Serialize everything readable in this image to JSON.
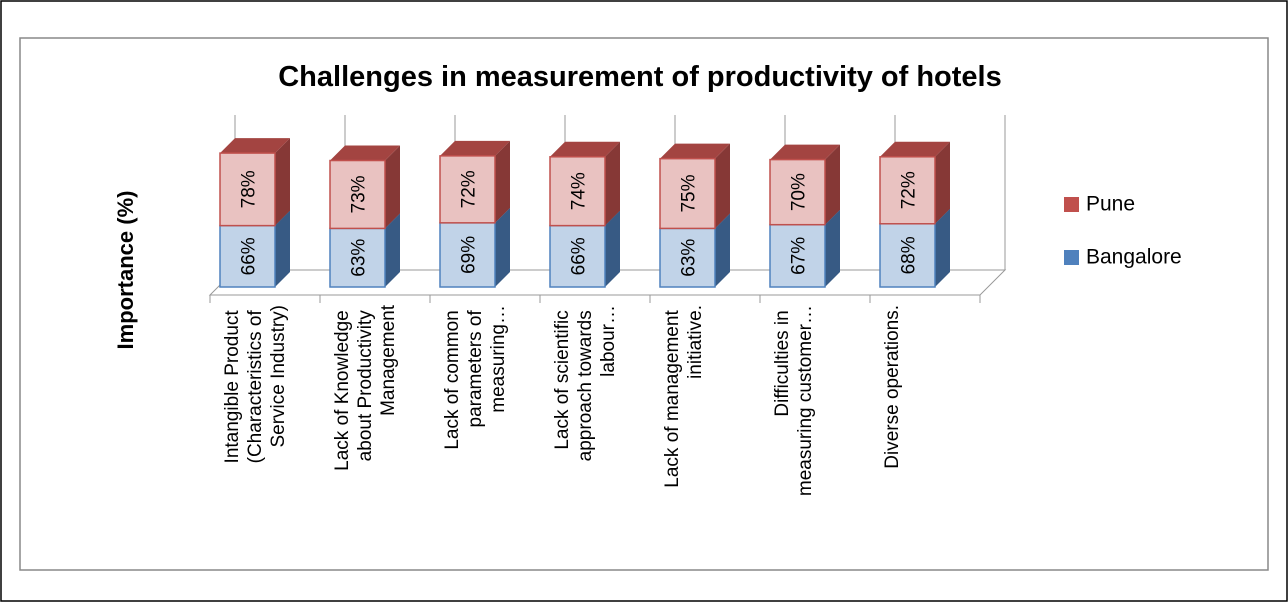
{
  "chart_data": {
    "type": "bar3d_stacked",
    "title": "Challenges in measurement of productivity of hotels",
    "y_label": "Importance  (%)",
    "categories": [
      "Intangible Product (Characteristics of Service Industry)",
      "Lack of Knowledge about Productivity Management",
      "Lack of common parameters of measuring…",
      "Lack of scientific approach towards labour…",
      "Lack of management initiative.",
      "Difficulties in measuring customer…",
      "Diverse operations."
    ],
    "series": [
      {
        "name": "Bangalore",
        "color": "#4f81bd",
        "values": [
          66,
          63,
          69,
          66,
          63,
          67,
          68
        ],
        "value_labels": [
          "66%",
          "63%",
          "69%",
          "66%",
          "63%",
          "67%",
          "68%"
        ]
      },
      {
        "name": "Pune",
        "color": "#c0504d",
        "values": [
          78,
          73,
          72,
          74,
          75,
          70,
          72
        ],
        "value_labels": [
          "78%",
          "73%",
          "72%",
          "74%",
          "75%",
          "70%",
          "72%"
        ]
      }
    ],
    "legend": "right"
  }
}
